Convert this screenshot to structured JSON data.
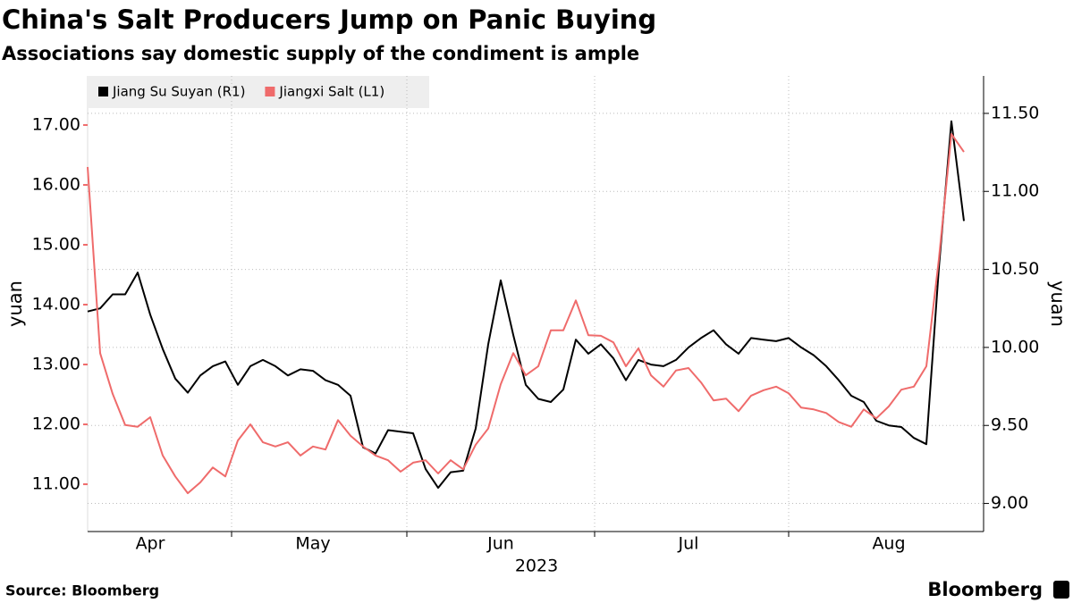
{
  "chart_data": {
    "type": "line",
    "title": "China's Salt Producers Jump on Panic Buying",
    "subtitle": "Associations say domestic supply of the condiment is ample",
    "ylabel": "yuan",
    "y2label": "yuan",
    "xlabel": "2023",
    "source": "Source: Bloomberg",
    "brand": "Bloomberg",
    "categories": [
      null,
      null,
      null,
      null,
      null,
      "Apr",
      null,
      null,
      null,
      null,
      null,
      null,
      null,
      null,
      null,
      null,
      null,
      null,
      "May",
      null,
      null,
      null,
      null,
      null,
      null,
      null,
      null,
      null,
      null,
      null,
      null,
      null,
      null,
      "Jun",
      null,
      null,
      null,
      null,
      null,
      null,
      null,
      null,
      null,
      null,
      null,
      null,
      null,
      null,
      "Jul",
      null,
      null,
      null,
      null,
      null,
      null,
      null,
      null,
      null,
      null,
      null,
      null,
      null,
      null,
      null,
      "Aug",
      null,
      null,
      null,
      null,
      null,
      null
    ],
    "series": [
      {
        "name": "Jiang Su Suyan (R1)",
        "color": "#000000",
        "axis": "y2",
        "values": [
          10.23,
          10.25,
          10.34,
          10.34,
          10.48,
          10.21,
          9.99,
          9.8,
          9.71,
          9.82,
          9.88,
          9.91,
          9.76,
          9.88,
          9.92,
          9.88,
          9.82,
          9.86,
          9.85,
          9.79,
          9.76,
          9.69,
          9.36,
          9.32,
          9.47,
          9.46,
          9.45,
          9.22,
          9.1,
          9.2,
          9.21,
          9.48,
          10.02,
          10.43,
          10.08,
          9.76,
          9.67,
          9.65,
          9.73,
          10.05,
          9.96,
          10.02,
          9.93,
          9.79,
          9.92,
          9.89,
          9.88,
          9.92,
          10.0,
          10.06,
          10.11,
          10.02,
          9.96,
          10.06,
          10.05,
          10.04,
          10.06,
          10.0,
          9.95,
          9.88,
          9.79,
          9.69,
          9.65,
          9.53,
          9.5,
          9.49,
          9.42,
          9.38,
          10.51,
          11.45,
          10.81
        ]
      },
      {
        "name": "Jiangxi Salt (L1)",
        "color": "#ef6b6b",
        "values": [
          16.3,
          13.19,
          12.51,
          11.99,
          11.96,
          12.12,
          11.48,
          11.13,
          10.85,
          11.03,
          11.28,
          11.13,
          11.73,
          12.0,
          11.7,
          11.63,
          11.7,
          11.48,
          11.63,
          11.58,
          12.07,
          11.81,
          11.63,
          11.48,
          11.4,
          11.21,
          11.36,
          11.4,
          11.18,
          11.4,
          11.25,
          11.66,
          11.93,
          12.67,
          13.19,
          12.82,
          12.97,
          13.57,
          13.57,
          14.07,
          13.49,
          13.48,
          13.37,
          12.97,
          13.27,
          12.82,
          12.63,
          12.9,
          12.94,
          12.7,
          12.4,
          12.43,
          12.22,
          12.48,
          12.57,
          12.63,
          12.52,
          12.28,
          12.25,
          12.19,
          12.04,
          11.96,
          12.25,
          12.1,
          12.3,
          12.58,
          12.63,
          12.97,
          14.76,
          16.85,
          16.55
        ]
      }
    ],
    "ylim": [
      10.21,
      17.82
    ],
    "yticks": [
      {
        "value": 11,
        "label": "11.00"
      },
      {
        "value": 12,
        "label": "12.00"
      },
      {
        "value": 13,
        "label": "13.00"
      },
      {
        "value": 14,
        "label": "14.00"
      },
      {
        "value": 15,
        "label": "15.00"
      },
      {
        "value": 16,
        "label": "16.00"
      },
      {
        "value": 17,
        "label": "17.00"
      }
    ],
    "y2lim": [
      8.82,
      11.74
    ],
    "y2ticks": [
      {
        "value": 9,
        "label": "9.00"
      },
      {
        "value": 9.5,
        "label": "9.50"
      },
      {
        "value": 10,
        "label": "10.00"
      },
      {
        "value": 10.5,
        "label": "10.50"
      },
      {
        "value": 11,
        "label": "11.00"
      },
      {
        "value": 11.5,
        "label": "11.50"
      }
    ],
    "grid": true
  }
}
